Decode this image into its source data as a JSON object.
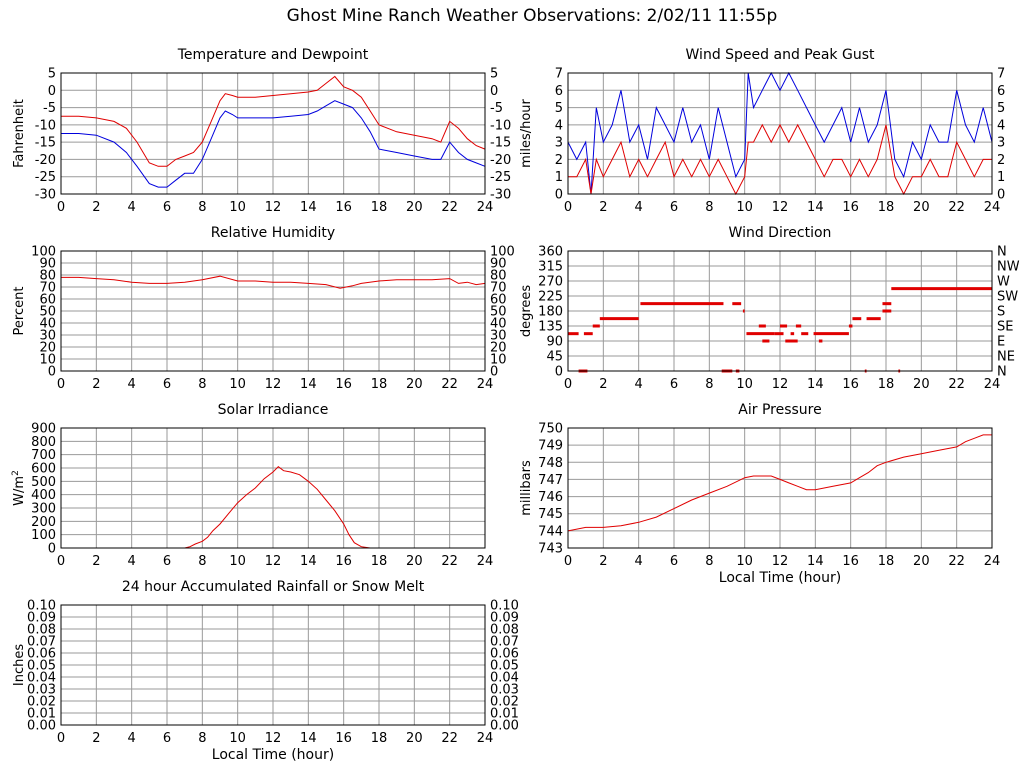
{
  "page_title": "Ghost Mine Ranch Weather Observations: 2/02/11 11:55p",
  "colors": {
    "red": "#e00000",
    "blue": "#0000dd",
    "grid": "#9a9a9a",
    "frame": "#000000"
  },
  "chart_data": [
    {
      "id": "temp",
      "type": "line",
      "title": "Temperature and Dewpoint",
      "xlabel": "",
      "ylabel": "Fahrenheit",
      "xlim": [
        0,
        24
      ],
      "ylim": [
        -30,
        5
      ],
      "xticks": [
        0,
        2,
        4,
        6,
        8,
        10,
        12,
        14,
        16,
        18,
        20,
        22,
        24
      ],
      "yticks": [
        -30,
        -25,
        -20,
        -15,
        -10,
        -5,
        0,
        5
      ],
      "yticks_right": [
        "-30",
        "-25",
        "-20",
        "-15",
        "-10",
        "-5",
        "0",
        "5"
      ],
      "grid": true,
      "series": [
        {
          "color": "#e00000",
          "x": [
            0,
            1,
            2,
            3,
            3.7,
            4.3,
            5,
            5.5,
            6,
            6.5,
            7,
            7.5,
            8,
            8.5,
            9,
            9.3,
            9.7,
            10,
            11,
            12,
            13,
            14,
            14.5,
            15,
            15.5,
            16,
            16.5,
            17,
            17.5,
            18,
            19,
            20,
            21,
            21.5,
            22,
            22.5,
            23,
            23.5,
            24
          ],
          "y": [
            -7.5,
            -7.5,
            -8,
            -9,
            -11,
            -15,
            -21,
            -22,
            -22,
            -20,
            -19,
            -18,
            -15,
            -9,
            -3,
            -1,
            -1.5,
            -2,
            -2,
            -1.5,
            -1,
            -0.5,
            0,
            2,
            4,
            1,
            0,
            -2,
            -6,
            -10,
            -12,
            -13,
            -14,
            -15,
            -9,
            -11,
            -14,
            -16,
            -17
          ]
        },
        {
          "color": "#0000dd",
          "x": [
            0,
            1,
            2,
            3,
            3.7,
            4.3,
            5,
            5.5,
            6,
            6.5,
            7,
            7.5,
            8,
            8.5,
            9,
            9.3,
            9.7,
            10,
            11,
            12,
            13,
            14,
            14.5,
            15,
            15.5,
            16,
            16.5,
            17,
            17.5,
            18,
            19,
            20,
            21,
            21.5,
            22,
            22.5,
            23,
            23.5,
            24
          ],
          "y": [
            -12.5,
            -12.5,
            -13,
            -15,
            -18,
            -22,
            -27,
            -28,
            -28,
            -26,
            -24,
            -24,
            -20,
            -14,
            -8,
            -6,
            -7,
            -8,
            -8,
            -8,
            -7.5,
            -7,
            -6,
            -4.5,
            -3,
            -4,
            -5,
            -8,
            -12,
            -17,
            -18,
            -19,
            -20,
            -20,
            -15,
            -18,
            -20,
            -21,
            -22
          ]
        }
      ]
    },
    {
      "id": "wind",
      "type": "line",
      "title": "Wind Speed and Peak Gust",
      "xlabel": "",
      "ylabel": "miles/hour",
      "xlim": [
        0,
        24
      ],
      "ylim": [
        0,
        7
      ],
      "xticks": [
        0,
        2,
        4,
        6,
        8,
        10,
        12,
        14,
        16,
        18,
        20,
        22,
        24
      ],
      "yticks": [
        0,
        1,
        2,
        3,
        4,
        5,
        6,
        7
      ],
      "yticks_right": [
        "0",
        "1",
        "2",
        "3",
        "4",
        "5",
        "6",
        "7"
      ],
      "grid": true,
      "series": [
        {
          "color": "#0000dd",
          "x": [
            0,
            0.5,
            1,
            1.3,
            1.6,
            2,
            2.5,
            3,
            3.5,
            4,
            4.5,
            5,
            5.5,
            6,
            6.5,
            7,
            7.5,
            8,
            8.5,
            9,
            9.5,
            10,
            10.2,
            10.5,
            11,
            11.5,
            12,
            12.5,
            13,
            13.5,
            14,
            14.5,
            15,
            15.5,
            16,
            16.5,
            17,
            17.5,
            18,
            18.5,
            19,
            19.5,
            20,
            20.5,
            21,
            21.5,
            22,
            22.5,
            23,
            23.5,
            24
          ],
          "y": [
            3,
            2,
            3,
            0,
            5,
            3,
            4,
            6,
            3,
            4,
            2,
            5,
            4,
            3,
            5,
            3,
            4,
            2,
            5,
            3,
            1,
            2,
            7,
            5,
            6,
            7,
            6,
            7,
            6,
            5,
            4,
            3,
            4,
            5,
            3,
            5,
            3,
            4,
            6,
            2,
            1,
            3,
            2,
            4,
            3,
            3,
            6,
            4,
            3,
            5,
            3
          ]
        },
        {
          "color": "#e00000",
          "x": [
            0,
            0.5,
            1,
            1.3,
            1.6,
            2,
            2.5,
            3,
            3.5,
            4,
            4.5,
            5,
            5.5,
            6,
            6.5,
            7,
            7.5,
            8,
            8.5,
            9,
            9.5,
            10,
            10.2,
            10.5,
            11,
            11.5,
            12,
            12.5,
            13,
            13.5,
            14,
            14.5,
            15,
            15.5,
            16,
            16.5,
            17,
            17.5,
            18,
            18.5,
            19,
            19.5,
            20,
            20.5,
            21,
            21.5,
            22,
            22.5,
            23,
            23.5,
            24
          ],
          "y": [
            1,
            1,
            2,
            0,
            2,
            1,
            2,
            3,
            1,
            2,
            1,
            2,
            3,
            1,
            2,
            1,
            2,
            1,
            2,
            1,
            0,
            1,
            3,
            3,
            4,
            3,
            4,
            3,
            4,
            3,
            2,
            1,
            2,
            2,
            1,
            2,
            1,
            2,
            4,
            1,
            0,
            1,
            1,
            2,
            1,
            1,
            3,
            2,
            1,
            2,
            2
          ]
        }
      ]
    },
    {
      "id": "humidity",
      "type": "line",
      "title": "Relative Humidity",
      "xlabel": "",
      "ylabel": "Percent",
      "xlim": [
        0,
        24
      ],
      "ylim": [
        0,
        100
      ],
      "xticks": [
        0,
        2,
        4,
        6,
        8,
        10,
        12,
        14,
        16,
        18,
        20,
        22,
        24
      ],
      "yticks": [
        0,
        10,
        20,
        30,
        40,
        50,
        60,
        70,
        80,
        90,
        100
      ],
      "yticks_right": [
        "0",
        "10",
        "20",
        "30",
        "40",
        "50",
        "60",
        "70",
        "80",
        "90",
        "100"
      ],
      "grid": true,
      "series": [
        {
          "color": "#e00000",
          "x": [
            0,
            1,
            2,
            3,
            4,
            5,
            6,
            7,
            8,
            9,
            10,
            11,
            12,
            13,
            14,
            15,
            15.8,
            16.5,
            17,
            18,
            19,
            20,
            21,
            22,
            22.5,
            23,
            23.5,
            24
          ],
          "y": [
            78,
            78,
            77,
            76,
            74,
            73,
            73,
            74,
            76,
            79,
            75,
            75,
            74,
            74,
            73,
            72,
            69,
            71,
            73,
            75,
            76,
            76,
            76,
            77,
            73,
            74,
            72,
            73
          ]
        }
      ]
    },
    {
      "id": "direction",
      "type": "scatter",
      "title": "Wind Direction",
      "xlabel": "",
      "ylabel": "degrees",
      "xlim": [
        0,
        24
      ],
      "ylim": [
        0,
        360
      ],
      "xticks": [
        0,
        2,
        4,
        6,
        8,
        10,
        12,
        14,
        16,
        18,
        20,
        22,
        24
      ],
      "yticks": [
        0,
        45,
        90,
        135,
        180,
        225,
        270,
        315,
        360
      ],
      "yticks_right": [
        "N",
        "NE",
        "E",
        "SE",
        "S",
        "SW",
        "W",
        "NW",
        "N"
      ],
      "grid": true,
      "segments": [
        {
          "x0": 0,
          "x1": 0.6,
          "y": 112
        },
        {
          "x0": 0.9,
          "x1": 1.4,
          "y": 112
        },
        {
          "x0": 0.6,
          "x1": 1.1,
          "y": 0
        },
        {
          "x0": 1.4,
          "x1": 1.8,
          "y": 135
        },
        {
          "x0": 1.8,
          "x1": 4.0,
          "y": 157
        },
        {
          "x0": 4.1,
          "x1": 8.8,
          "y": 202
        },
        {
          "x0": 8.7,
          "x1": 9.3,
          "y": 0
        },
        {
          "x0": 9.3,
          "x1": 9.8,
          "y": 202
        },
        {
          "x0": 9.9,
          "x1": 10.0,
          "y": 180
        },
        {
          "x0": 9.5,
          "x1": 9.7,
          "y": 0
        },
        {
          "x0": 10.1,
          "x1": 11.7,
          "y": 112
        },
        {
          "x0": 10.8,
          "x1": 11.2,
          "y": 135
        },
        {
          "x0": 11.0,
          "x1": 11.4,
          "y": 90
        },
        {
          "x0": 11.7,
          "x1": 12.2,
          "y": 112
        },
        {
          "x0": 12.0,
          "x1": 12.4,
          "y": 135
        },
        {
          "x0": 12.3,
          "x1": 13.0,
          "y": 90
        },
        {
          "x0": 12.6,
          "x1": 12.8,
          "y": 112
        },
        {
          "x0": 12.9,
          "x1": 13.2,
          "y": 135
        },
        {
          "x0": 13.2,
          "x1": 13.6,
          "y": 112
        },
        {
          "x0": 13.9,
          "x1": 15.9,
          "y": 112
        },
        {
          "x0": 14.2,
          "x1": 14.4,
          "y": 90
        },
        {
          "x0": 15.9,
          "x1": 16.1,
          "y": 135
        },
        {
          "x0": 16.1,
          "x1": 16.6,
          "y": 157
        },
        {
          "x0": 16.8,
          "x1": 16.9,
          "y": 0
        },
        {
          "x0": 16.9,
          "x1": 17.7,
          "y": 157
        },
        {
          "x0": 17.8,
          "x1": 18.3,
          "y": 180
        },
        {
          "x0": 17.8,
          "x1": 18.3,
          "y": 202
        },
        {
          "x0": 18.3,
          "x1": 24,
          "y": 247
        },
        {
          "x0": 18.7,
          "x1": 18.8,
          "y": 0
        }
      ]
    },
    {
      "id": "solar",
      "type": "line",
      "title": "Solar Irradiance",
      "xlabel": "",
      "ylabel": "W/m2",
      "xlim": [
        0,
        24
      ],
      "ylim": [
        0,
        900
      ],
      "xticks": [
        0,
        2,
        4,
        6,
        8,
        10,
        12,
        14,
        16,
        18,
        20,
        22,
        24
      ],
      "yticks": [
        0,
        100,
        200,
        300,
        400,
        500,
        600,
        700,
        800,
        900
      ],
      "grid": true,
      "series": [
        {
          "color": "#e00000",
          "x": [
            0,
            6,
            7,
            7.3,
            7.6,
            8,
            8.3,
            8.6,
            9,
            9.5,
            10,
            10.5,
            11,
            11.5,
            12,
            12.3,
            12.6,
            13,
            13.5,
            14,
            14.5,
            15,
            15.5,
            16,
            16.3,
            16.6,
            17,
            17.5,
            18,
            24
          ],
          "y": [
            0,
            0,
            0,
            10,
            30,
            50,
            80,
            130,
            180,
            260,
            340,
            400,
            450,
            520,
            570,
            610,
            580,
            570,
            550,
            500,
            440,
            360,
            280,
            180,
            100,
            40,
            10,
            0,
            0,
            0
          ]
        }
      ]
    },
    {
      "id": "pressure",
      "type": "line",
      "title": "Air Pressure",
      "xlabel": "Local Time (hour)",
      "ylabel": "millibars",
      "xlim": [
        0,
        24
      ],
      "ylim": [
        743,
        750
      ],
      "xticks": [
        0,
        2,
        4,
        6,
        8,
        10,
        12,
        14,
        16,
        18,
        20,
        22,
        24
      ],
      "yticks": [
        743,
        744,
        745,
        746,
        747,
        748,
        749,
        750
      ],
      "grid": true,
      "series": [
        {
          "color": "#e00000",
          "x": [
            0,
            1,
            2,
            3,
            4,
            5,
            6,
            7,
            8,
            9,
            10,
            10.5,
            11,
            11.5,
            12,
            12.5,
            13,
            13.5,
            14,
            15,
            16,
            16.5,
            17,
            17.5,
            18,
            19,
            20,
            21,
            22,
            22.5,
            23,
            23.5,
            24
          ],
          "y": [
            744.0,
            744.2,
            744.2,
            744.3,
            744.5,
            744.8,
            745.3,
            745.8,
            746.2,
            746.6,
            747.1,
            747.2,
            747.2,
            747.2,
            747.0,
            746.8,
            746.6,
            746.4,
            746.4,
            746.6,
            746.8,
            747.1,
            747.4,
            747.8,
            748.0,
            748.3,
            748.5,
            748.7,
            748.9,
            749.2,
            749.4,
            749.6,
            749.6
          ]
        }
      ]
    },
    {
      "id": "rain",
      "type": "line",
      "title": "24 hour Accumulated Rainfall or Snow Melt",
      "xlabel": "Local Time (hour)",
      "ylabel": "Inches",
      "xlim": [
        0,
        24
      ],
      "ylim": [
        0,
        0.1
      ],
      "xticks": [
        0,
        2,
        4,
        6,
        8,
        10,
        12,
        14,
        16,
        18,
        20,
        22,
        24
      ],
      "yticks": [
        0,
        0.01,
        0.02,
        0.03,
        0.04,
        0.05,
        0.06,
        0.07,
        0.08,
        0.09,
        0.1
      ],
      "ytick_labels": [
        "0.00",
        "0.01",
        "0.02",
        "0.03",
        "0.04",
        "0.05",
        "0.06",
        "0.07",
        "0.08",
        "0.09",
        "0.10"
      ],
      "yticks_right": [
        "0.00",
        "0.01",
        "0.02",
        "0.03",
        "0.04",
        "0.05",
        "0.06",
        "0.07",
        "0.08",
        "0.09",
        "0.10"
      ],
      "grid": true,
      "series": [
        {
          "color": "#e00000",
          "x": [
            0,
            24
          ],
          "y": [
            0,
            0
          ]
        }
      ]
    }
  ]
}
